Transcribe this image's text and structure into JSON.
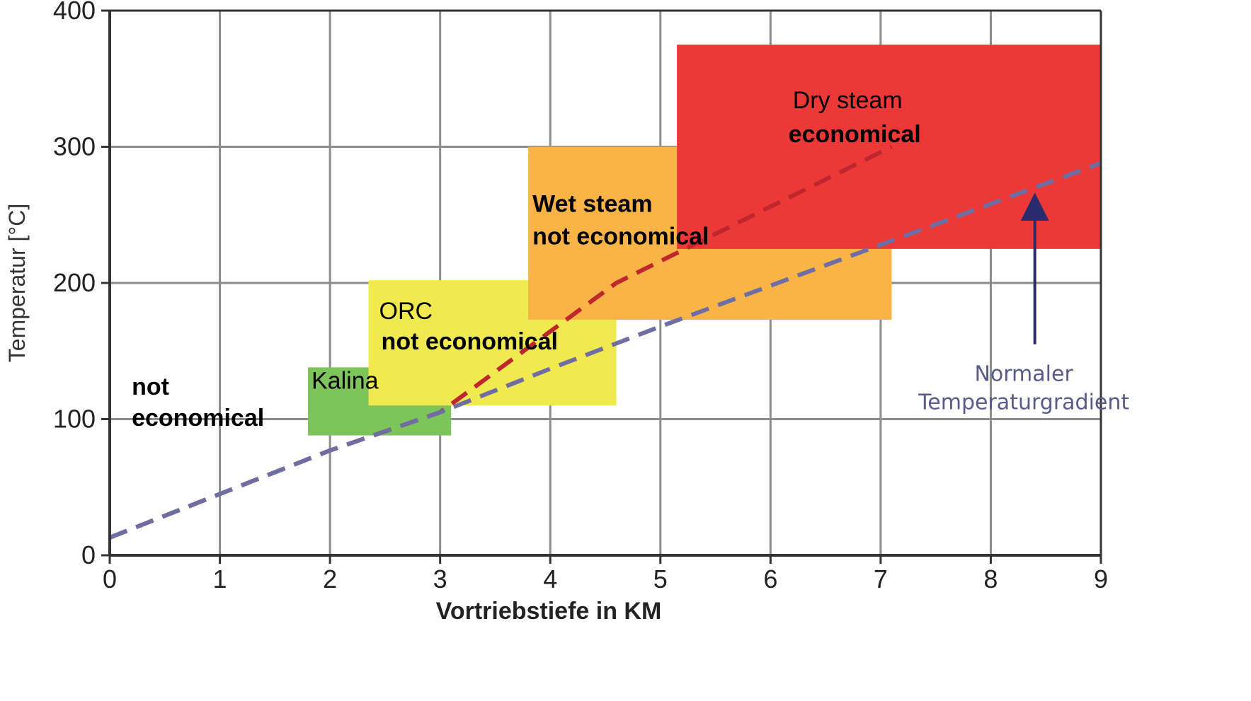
{
  "chart_data": {
    "type": "area",
    "xlabel": "Vortriebstiefe in KM",
    "ylabel": "Temperatur [°C]",
    "xlim": [
      0,
      9
    ],
    "ylim": [
      0,
      400
    ],
    "x_ticks": [
      "0",
      "1",
      "2",
      "3",
      "4",
      "5",
      "6",
      "7",
      "8",
      "9"
    ],
    "y_ticks": [
      "0",
      "100",
      "200",
      "300",
      "400"
    ],
    "grid": true,
    "regions": [
      {
        "label_top": "Kalina",
        "label_bottom": "",
        "x": [
          1.8,
          3.1
        ],
        "y": [
          88,
          138
        ],
        "color": "#7dc45a",
        "text_color": "#333333"
      },
      {
        "label_top": "ORC",
        "label_bottom": "not economical",
        "x": [
          2.35,
          4.6
        ],
        "y": [
          110,
          202
        ],
        "color": "#f1e950",
        "text_color": "#000000"
      },
      {
        "label_top": "Wet steam",
        "label_bottom": "not economical",
        "x": [
          3.8,
          7.1
        ],
        "y": [
          173,
          300
        ],
        "color": "#f9b347",
        "text_color": "#000000"
      },
      {
        "label_top": "Dry steam",
        "label_bottom": "economical",
        "x": [
          5.15,
          9.0
        ],
        "y": [
          225,
          375
        ],
        "color": "#ed3838",
        "text_color": "#000000"
      }
    ],
    "series": [
      {
        "style": "dashed",
        "color": "#c0272d",
        "x": [
          0,
          1,
          2,
          3,
          4.6,
          7.1
        ],
        "y": [
          13,
          45,
          77,
          105,
          200,
          300
        ]
      },
      {
        "style": "dashed",
        "color": "#6f6ea2",
        "x": [
          0,
          1,
          2,
          3,
          4,
          5,
          6,
          7,
          8,
          9
        ],
        "y": [
          13,
          45,
          77,
          105,
          137,
          168,
          198,
          228,
          258,
          288
        ]
      }
    ],
    "annotations": [
      {
        "text_lines": [
          "not",
          "economical"
        ],
        "x": 0.2,
        "y": 118,
        "color": "#000000"
      },
      {
        "text_lines": [
          "Normaler",
          "Temperaturgradient"
        ],
        "x": 8.1,
        "y": 128,
        "color": "#5a5a88",
        "arrow": {
          "x": 8.4,
          "y_from": 155,
          "y_to": 256,
          "color": "#2a2a6e"
        }
      }
    ]
  }
}
